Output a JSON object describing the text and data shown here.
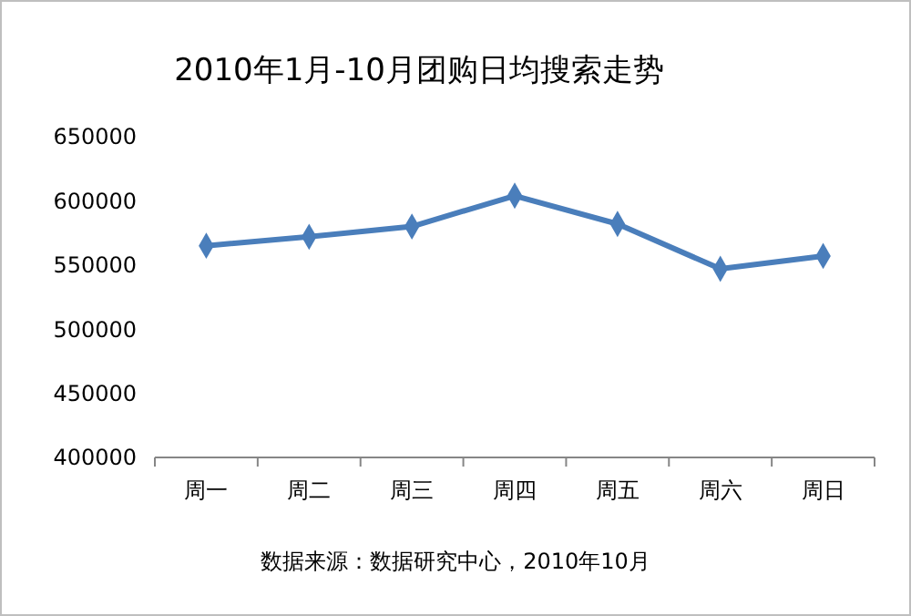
{
  "chart_data": {
    "type": "line",
    "title": "2010年1月-10月团购日均搜索走势",
    "categories": [
      "周一",
      "周二",
      "周三",
      "周四",
      "周五",
      "周六",
      "周日"
    ],
    "series": [
      {
        "color": "#4a7ebb",
        "values": [
          565000,
          572000,
          580000,
          604000,
          582000,
          547000,
          557000
        ]
      }
    ],
    "ylim": [
      400000,
      650000
    ],
    "yticks": [
      400000,
      450000,
      500000,
      550000,
      600000,
      650000
    ],
    "marker": "diamond",
    "annotations": [
      "数据来源：数据研究中心，2010年10月"
    ]
  }
}
